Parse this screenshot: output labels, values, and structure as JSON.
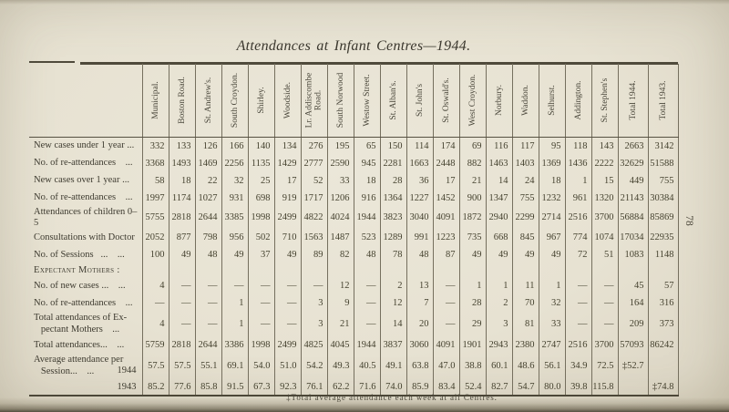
{
  "page": {
    "title": "Attendances at Infant Centres—1944.",
    "page_number": "78",
    "footnote": "‡Total average attendance each week at all Centres."
  },
  "table": {
    "columns": [
      "Municipal.",
      "Boston Road.",
      "St. Andrew's.",
      "South Croydon.",
      "Shirley.",
      "Woodside.",
      "Lr. Addiscombe Road.",
      "South Norwood",
      "Westow Street.",
      "St. Alban's.",
      "St. John's",
      "St. Oswald's.",
      "West Croydon.",
      "Norbury.",
      "Waddon.",
      "Selhurst.",
      "Addington.",
      "St. Stephen's",
      "Total 1944.",
      "Total 1943."
    ],
    "rows": [
      {
        "label": "New cases under 1 year ...",
        "values": [
          "332",
          "133",
          "126",
          "166",
          "140",
          "134",
          "276",
          "195",
          "65",
          "150",
          "114",
          "174",
          "69",
          "116",
          "117",
          "95",
          "118",
          "143",
          "2663",
          "3142"
        ]
      },
      {
        "label": "No. of re-attendances    ...",
        "values": [
          "3368",
          "1493",
          "1469",
          "2256",
          "1135",
          "1429",
          "2777",
          "2590",
          "945",
          "2281",
          "1663",
          "2448",
          "882",
          "1463",
          "1403",
          "1369",
          "1436",
          "2222",
          "32629",
          "51588"
        ]
      },
      {
        "label": "New cases over 1 year ...",
        "values": [
          "58",
          "18",
          "22",
          "32",
          "25",
          "17",
          "52",
          "33",
          "18",
          "28",
          "36",
          "17",
          "21",
          "14",
          "24",
          "18",
          "1",
          "15",
          "449",
          "755"
        ]
      },
      {
        "label": "No. of re-attendances    ...",
        "values": [
          "1997",
          "1174",
          "1027",
          "931",
          "698",
          "919",
          "1717",
          "1206",
          "916",
          "1364",
          "1227",
          "1452",
          "900",
          "1347",
          "755",
          "1232",
          "961",
          "1320",
          "21143",
          "30384"
        ]
      },
      {
        "label": "Attendances of children 0–5",
        "values": [
          "5755",
          "2818",
          "2644",
          "3385",
          "1998",
          "2499",
          "4822",
          "4024",
          "1944",
          "3823",
          "3040",
          "4091",
          "1872",
          "2940",
          "2299",
          "2714",
          "2516",
          "3700",
          "56884",
          "85869"
        ]
      },
      {
        "label": "Consultations with Doctor",
        "values": [
          "2052",
          "877",
          "798",
          "956",
          "502",
          "710",
          "1563",
          "1487",
          "523",
          "1289",
          "991",
          "1223",
          "735",
          "668",
          "845",
          "967",
          "774",
          "1074",
          "17034",
          "22935"
        ]
      },
      {
        "label": "No. of Sessions   ...    ...",
        "values": [
          "100",
          "49",
          "48",
          "49",
          "37",
          "49",
          "89",
          "82",
          "48",
          "78",
          "48",
          "87",
          "49",
          "49",
          "49",
          "49",
          "72",
          "51",
          "1083",
          "1148"
        ]
      },
      {
        "type": "section",
        "label": "Expectant Mothers :"
      },
      {
        "label": "No. of new cases ...    ...",
        "values": [
          "4",
          "—",
          "—",
          "—",
          "—",
          "—",
          "—",
          "12",
          "—",
          "2",
          "13",
          "—",
          "1",
          "1",
          "11",
          "1",
          "—",
          "—",
          "45",
          "57"
        ]
      },
      {
        "label": "No. of re-attendances    ...",
        "values": [
          "—",
          "—",
          "—",
          "1",
          "—",
          "—",
          "3",
          "9",
          "—",
          "12",
          "7",
          "—",
          "28",
          "2",
          "70",
          "32",
          "—",
          "—",
          "164",
          "316"
        ]
      },
      {
        "label": "Total attendances of Ex-\n   pectant Mothers    ...",
        "values": [
          "4",
          "—",
          "—",
          "1",
          "—",
          "—",
          "3",
          "21",
          "—",
          "14",
          "20",
          "—",
          "29",
          "3",
          "81",
          "33",
          "—",
          "—",
          "209",
          "373"
        ]
      },
      {
        "label": "Total attendances...    ...",
        "values": [
          "5759",
          "2818",
          "2644",
          "3386",
          "1998",
          "2499",
          "4825",
          "4045",
          "1944",
          "3837",
          "3060",
          "4091",
          "1901",
          "2943",
          "2380",
          "2747",
          "2516",
          "3700",
          "57093",
          "86242"
        ]
      },
      {
        "label": "Average attendance per\n   Session...    ...",
        "year": "1944",
        "values": [
          "57.5",
          "57.5",
          "55.1",
          "69.1",
          "54.0",
          "51.0",
          "54.2",
          "49.3",
          "40.5",
          "49.1",
          "63.8",
          "47.0",
          "38.8",
          "60.1",
          "48.6",
          "56.1",
          "34.9",
          "72.5",
          "‡52.7",
          ""
        ]
      },
      {
        "label": "",
        "year": "1943",
        "values": [
          "85.2",
          "77.6",
          "85.8",
          "91.5",
          "67.3",
          "92.3",
          "76.1",
          "62.2",
          "71.6",
          "74.0",
          "85.9",
          "83.4",
          "52.4",
          "82.7",
          "54.7",
          "80.0",
          "39.8",
          "115.8",
          "",
          "‡74.8"
        ]
      }
    ]
  }
}
